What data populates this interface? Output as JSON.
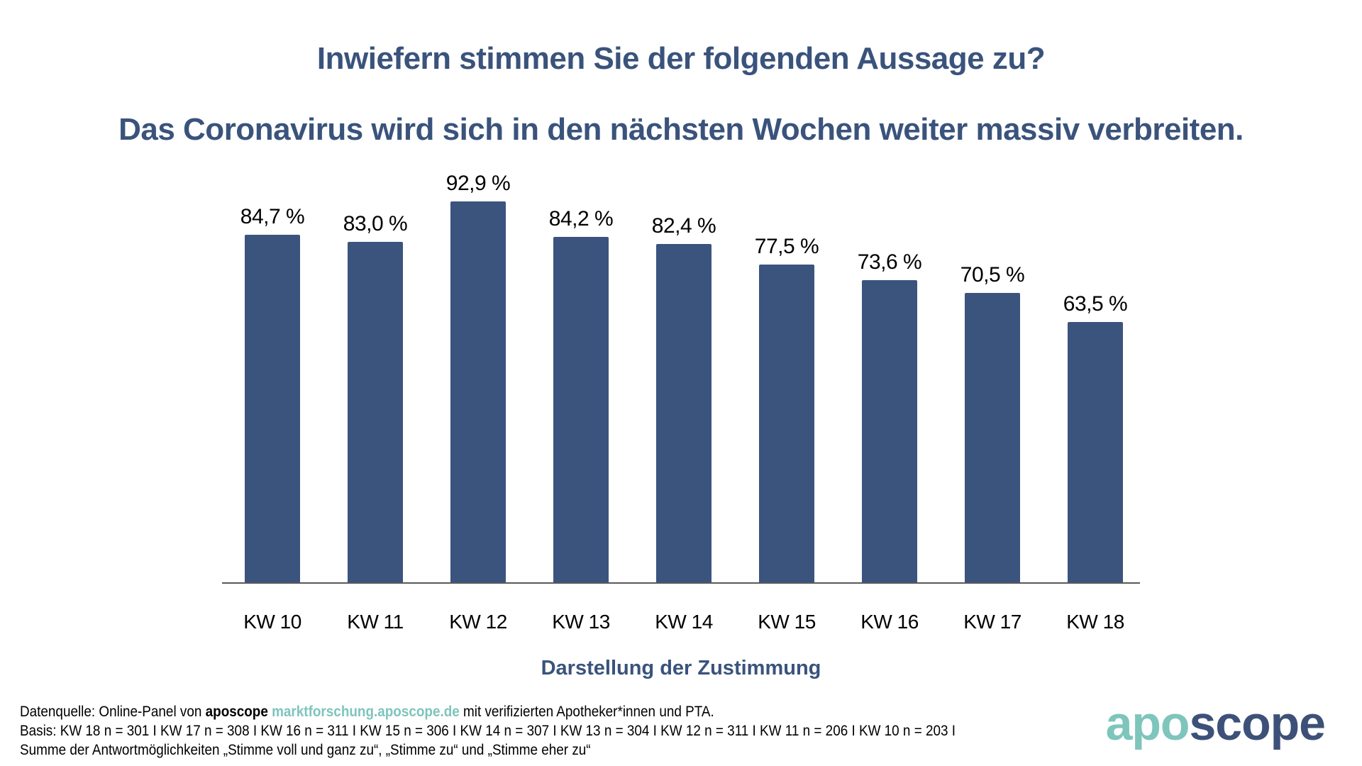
{
  "page": {
    "title_line1": "Inwiefern stimmen Sie der folgenden Aussage zu?",
    "title_line2": "Das Coronavirus wird sich in den nächsten Wochen weiter massiv verbreiten."
  },
  "chart_data": {
    "type": "bar",
    "title": "Inwiefern stimmen Sie der folgenden Aussage zu?",
    "subtitle": "Das Coronavirus wird sich in den nächsten Wochen weiter massiv verbreiten.",
    "categories": [
      "KW 10",
      "KW 11",
      "KW 12",
      "KW 13",
      "KW 14",
      "KW 15",
      "KW 16",
      "KW 17",
      "KW 18"
    ],
    "values": [
      84.7,
      83.0,
      92.9,
      84.2,
      82.4,
      77.5,
      73.6,
      70.5,
      63.5
    ],
    "value_labels": [
      "84,7 %",
      "83,0 %",
      "92,9 %",
      "84,2 %",
      "82,4 %",
      "77,5 %",
      "73,6 %",
      "70,5 %",
      "63,5 %"
    ],
    "xlabel": "Darstellung der Zustimmung",
    "ylabel": "",
    "ylim": [
      0,
      100
    ],
    "grid": false,
    "legend": "none",
    "bar_color": "#3A547E",
    "axis_color": "#595959",
    "label_color": "#000000"
  },
  "footer": {
    "line1": {
      "prefix": "Datenquelle: Online-Panel von ",
      "brand": "aposcope",
      "sep": " ",
      "link": "marktforschung.aposcope.de",
      "suffix": " mit verifizierten Apotheker*innen und PTA."
    },
    "line2": "Basis: KW 18 n = 301 I KW 17 n = 308 I KW 16 n = 311 I KW 15 n = 306 I KW 14 n = 307 I KW 13 n = 304 I KW 12 n = 311 I KW 11 n = 206 I KW 10 n = 203 I",
    "line3": "Summe der Antwortmöglichkeiten „Stimme voll und ganz zu“, „Stimme zu“ und „Stimme eher zu“"
  },
  "logo": {
    "part1": "apo",
    "part2": "scope",
    "teal": "#7EC5BC",
    "navy": "#3D5178"
  }
}
